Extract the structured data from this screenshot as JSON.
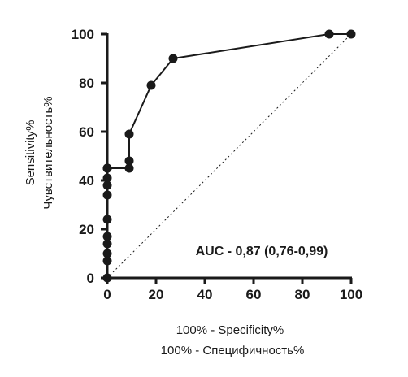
{
  "chart_data": {
    "type": "line",
    "title": "",
    "xlabel": [
      "100% - Specificity%",
      "100% - Специфичность%"
    ],
    "ylabel": [
      "Sensitivity%",
      "Чувствительность%"
    ],
    "xlim": [
      0,
      100
    ],
    "ylim": [
      0,
      100
    ],
    "xticks": [
      "0",
      "20",
      "40",
      "60",
      "80",
      "100"
    ],
    "yticks": [
      "0",
      "20",
      "40",
      "60",
      "80",
      "100"
    ],
    "grid": false,
    "reference_line": {
      "style": "dotted",
      "from": [
        0,
        0
      ],
      "to": [
        100,
        100
      ]
    },
    "annotation": "AUC - 0,87 (0,76-0,99)",
    "series": [
      {
        "x": [
          0,
          0,
          0,
          0,
          0,
          0,
          0,
          0,
          0,
          0,
          0,
          0,
          9,
          9,
          9,
          18,
          27,
          91,
          100
        ],
        "y": [
          0,
          7,
          10,
          14,
          17,
          24,
          34,
          38,
          41,
          45,
          45,
          45,
          45,
          48,
          59,
          79,
          90,
          100,
          100
        ]
      }
    ],
    "colors": {
      "line": "#1a1a1a",
      "marker": "#1a1a1a",
      "reference": "#1a1a1a"
    }
  }
}
